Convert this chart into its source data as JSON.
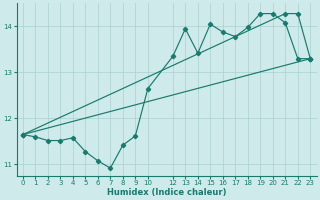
{
  "xlabel": "Humidex (Indice chaleur)",
  "bg_color": "#ceeaea",
  "line_color": "#1a7a6e",
  "grid_color": "#aacfcf",
  "xlim": [
    -0.5,
    23.5
  ],
  "ylim": [
    10.75,
    14.5
  ],
  "yticks": [
    11,
    12,
    13,
    14
  ],
  "xticks": [
    0,
    1,
    2,
    3,
    4,
    5,
    6,
    7,
    8,
    9,
    10,
    12,
    13,
    14,
    15,
    16,
    17,
    18,
    19,
    20,
    21,
    22,
    23
  ],
  "series1_x": [
    0,
    1,
    2,
    3,
    4,
    5,
    6,
    7,
    8,
    9,
    10,
    12,
    13,
    14,
    15,
    16,
    17,
    18,
    19,
    20,
    21,
    22,
    23
  ],
  "series1_y": [
    11.65,
    11.6,
    11.52,
    11.52,
    11.58,
    11.28,
    11.08,
    10.92,
    11.42,
    11.62,
    12.65,
    13.35,
    13.95,
    13.42,
    14.05,
    13.88,
    13.78,
    13.98,
    14.28,
    14.28,
    14.08,
    13.3,
    13.3
  ],
  "series2_x": [
    0,
    23
  ],
  "series2_y": [
    11.65,
    13.3
  ],
  "series3_x": [
    0,
    21,
    22,
    23
  ],
  "series3_y": [
    11.65,
    14.28,
    14.28,
    13.3
  ]
}
